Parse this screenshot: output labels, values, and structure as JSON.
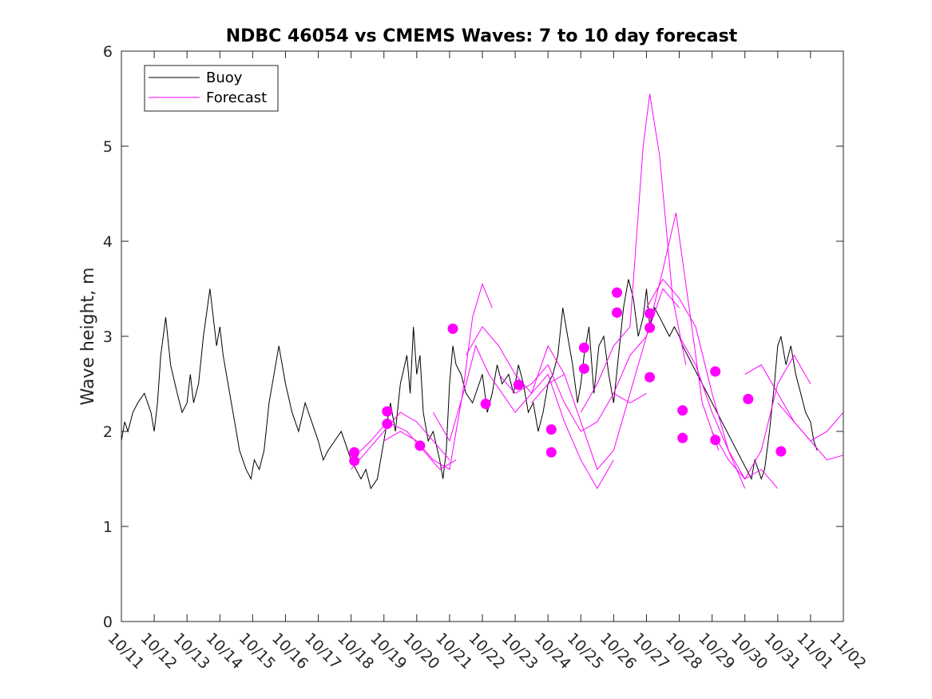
{
  "chart_data": {
    "type": "line",
    "title": "NDBC 46054 vs CMEMS Waves: 7 to 10 day forecast",
    "xlabel": "",
    "ylabel": "Wave height, m",
    "xlim": [
      0,
      22
    ],
    "ylim": [
      0,
      6
    ],
    "yticks": [
      0,
      1,
      2,
      3,
      4,
      5,
      6
    ],
    "categories": [
      "10/11",
      "10/12",
      "10/13",
      "10/14",
      "10/15",
      "10/16",
      "10/17",
      "10/18",
      "10/19",
      "10/20",
      "10/21",
      "10/22",
      "10/23",
      "10/24",
      "10/25",
      "10/26",
      "10/27",
      "10/28",
      "10/29",
      "10/30",
      "10/31",
      "11/01",
      "11/02"
    ],
    "legend": {
      "position": "top-left",
      "entries": [
        "Buoy",
        "Forecast"
      ]
    },
    "colors": {
      "buoy": "#000000",
      "forecast": "#ff00ff"
    },
    "series": [
      {
        "name": "Buoy",
        "x": [
          0,
          0.1,
          0.2,
          0.35,
          0.5,
          0.7,
          0.9,
          1.0,
          1.1,
          1.2,
          1.35,
          1.5,
          1.7,
          1.85,
          2.0,
          2.1,
          2.2,
          2.35,
          2.5,
          2.7,
          2.9,
          3.0,
          3.1,
          3.2,
          3.3,
          3.45,
          3.6,
          3.8,
          3.95,
          4.05,
          4.2,
          4.35,
          4.5,
          4.65,
          4.8,
          5.0,
          5.2,
          5.4,
          5.6,
          5.8,
          6.0,
          6.15,
          6.3,
          6.5,
          6.7,
          6.9,
          7.0,
          7.15,
          7.3,
          7.45,
          7.6,
          7.8,
          8.0,
          8.1,
          8.2,
          8.35,
          8.5,
          8.7,
          8.8,
          8.9,
          9.0,
          9.1,
          9.2,
          9.35,
          9.5,
          9.7,
          9.8,
          9.9,
          10.0,
          10.1,
          10.2,
          10.35,
          10.5,
          10.7,
          10.9,
          11.0,
          11.15,
          11.3,
          11.45,
          11.6,
          11.8,
          11.95,
          12.1,
          12.25,
          12.4,
          12.55,
          12.7,
          12.85,
          13.0,
          13.15,
          13.3,
          13.45,
          13.6,
          13.75,
          13.9,
          14.0,
          14.1,
          14.25,
          14.4,
          14.55,
          14.7,
          14.85,
          15.0,
          15.15,
          15.3,
          15.45,
          15.6,
          15.75,
          15.9,
          16.0,
          16.1,
          16.25,
          16.4,
          16.55,
          16.7,
          16.85,
          17.0,
          17.1,
          19.2,
          19.3,
          19.4,
          19.5,
          19.6,
          19.75,
          19.9,
          20.0,
          20.1,
          20.25,
          20.4,
          20.55,
          20.7,
          20.85,
          21.0,
          21.1,
          21.2
        ],
        "values": [
          1.9,
          2.1,
          2.0,
          2.2,
          2.3,
          2.4,
          2.2,
          2.0,
          2.3,
          2.8,
          3.2,
          2.7,
          2.4,
          2.2,
          2.3,
          2.6,
          2.3,
          2.5,
          3.0,
          3.5,
          2.9,
          3.1,
          2.8,
          2.6,
          2.4,
          2.1,
          1.8,
          1.6,
          1.5,
          1.7,
          1.6,
          1.8,
          2.3,
          2.6,
          2.9,
          2.5,
          2.2,
          2.0,
          2.3,
          2.1,
          1.9,
          1.7,
          1.8,
          1.9,
          2.0,
          1.8,
          1.7,
          1.6,
          1.5,
          1.6,
          1.4,
          1.5,
          1.9,
          2.1,
          2.3,
          2.0,
          2.5,
          2.8,
          2.4,
          3.1,
          2.6,
          2.8,
          2.2,
          1.9,
          2.0,
          1.7,
          1.5,
          1.8,
          2.5,
          2.9,
          2.7,
          2.6,
          2.4,
          2.3,
          2.5,
          2.6,
          2.2,
          2.4,
          2.7,
          2.5,
          2.6,
          2.4,
          2.7,
          2.5,
          2.2,
          2.3,
          2.0,
          2.2,
          2.5,
          2.6,
          2.8,
          3.3,
          3.0,
          2.7,
          2.3,
          2.5,
          2.8,
          3.1,
          2.4,
          2.9,
          3.0,
          2.6,
          2.3,
          2.8,
          3.3,
          3.6,
          3.4,
          3.0,
          3.2,
          3.5,
          3.1,
          3.3,
          3.2,
          3.1,
          3.0,
          3.1,
          3.0,
          2.9,
          1.5,
          1.7,
          1.6,
          1.5,
          1.6,
          2.0,
          2.5,
          2.9,
          3.0,
          2.7,
          2.9,
          2.6,
          2.4,
          2.2,
          2.1,
          1.9,
          1.8
        ]
      },
      {
        "name": "Forecast",
        "runs": [
          {
            "x": [
              7.0,
              7.5,
              8.0,
              8.5,
              9.0,
              9.5,
              10.0
            ],
            "values": [
              1.6,
              1.8,
              2.0,
              2.2,
              2.1,
              1.9,
              1.7
            ]
          },
          {
            "x": [
              7.0,
              7.6,
              8.1,
              8.7,
              9.2,
              9.7,
              10.2
            ],
            "values": [
              1.7,
              1.9,
              2.1,
              2.0,
              1.8,
              1.6,
              1.7
            ]
          },
          {
            "x": [
              8.0,
              8.5,
              9.0,
              9.5,
              10.0,
              10.4,
              10.7,
              11.0,
              11.3
            ],
            "values": [
              1.9,
              2.0,
              1.9,
              1.7,
              1.6,
              2.4,
              3.2,
              3.55,
              3.3
            ]
          },
          {
            "x": [
              9.5,
              10.0,
              10.5,
              10.8,
              11.2,
              11.6,
              12.0,
              12.5,
              13.0,
              13.5
            ],
            "values": [
              2.2,
              1.9,
              2.5,
              2.9,
              2.6,
              2.4,
              2.2,
              2.4,
              2.9,
              2.6
            ]
          },
          {
            "x": [
              10.5,
              11.0,
              11.5,
              12.0,
              12.5,
              13.0,
              13.5,
              14.0,
              14.5,
              15.0
            ],
            "values": [
              2.8,
              3.1,
              2.9,
              2.6,
              2.4,
              2.6,
              2.1,
              1.7,
              1.4,
              1.7
            ]
          },
          {
            "x": [
              11.5,
              12.0,
              12.5,
              13.0,
              13.5,
              14.0,
              14.5,
              15.0,
              15.5,
              16.0
            ],
            "values": [
              2.6,
              2.4,
              2.5,
              2.7,
              2.3,
              2.0,
              2.1,
              2.4,
              2.3,
              2.4
            ]
          },
          {
            "x": [
              12.5,
              13.0,
              13.5,
              14.0,
              14.5,
              15.0,
              15.5,
              16.0,
              16.5,
              17.0
            ],
            "values": [
              2.3,
              2.5,
              2.6,
              2.1,
              1.6,
              1.8,
              2.4,
              3.0,
              3.5,
              3.3
            ]
          },
          {
            "x": [
              14.0,
              14.5,
              15.0,
              15.5,
              15.9,
              16.1,
              16.4,
              16.8,
              17.2
            ],
            "values": [
              2.2,
              2.5,
              2.9,
              3.1,
              5.0,
              5.55,
              4.9,
              3.4,
              2.7
            ]
          },
          {
            "x": [
              15.0,
              15.5,
              16.0,
              16.5,
              16.9,
              17.3,
              17.7,
              18.2
            ],
            "values": [
              2.4,
              2.8,
              3.0,
              3.7,
              4.3,
              3.3,
              2.3,
              1.8
            ]
          },
          {
            "x": [
              16.0,
              16.5,
              17.0,
              17.5,
              18.0,
              18.5,
              19.0
            ],
            "values": [
              3.3,
              3.6,
              3.4,
              3.1,
              2.4,
              1.8,
              1.4
            ]
          },
          {
            "x": [
              17.0,
              17.5,
              18.0,
              18.5,
              19.0,
              19.5,
              20.0
            ],
            "values": [
              3.0,
              2.7,
              2.2,
              1.8,
              1.5,
              1.6,
              1.4
            ]
          },
          {
            "x": [
              18.0,
              18.5,
              19.0,
              19.5,
              20.0,
              20.5,
              21.0
            ],
            "values": [
              2.0,
              1.7,
              1.5,
              1.8,
              2.5,
              2.8,
              2.5
            ]
          },
          {
            "x": [
              19.0,
              19.5,
              20.0,
              20.5,
              21.0,
              21.5,
              22.0
            ],
            "values": [
              2.6,
              2.7,
              2.4,
              2.1,
              1.9,
              1.7,
              1.75
            ]
          },
          {
            "x": [
              20.0,
              20.5,
              21.0,
              21.5,
              22.0
            ],
            "values": [
              2.3,
              2.1,
              1.9,
              2.0,
              2.2
            ]
          }
        ]
      }
    ],
    "markers": {
      "name": "Forecast start points",
      "x": [
        7.1,
        7.1,
        8.1,
        8.1,
        9.1,
        10.1,
        11.1,
        12.1,
        13.1,
        13.1,
        14.1,
        14.1,
        15.1,
        15.1,
        16.1,
        16.1,
        16.1,
        17.1,
        17.1,
        18.1,
        18.1,
        19.1,
        20.1
      ],
      "values": [
        1.78,
        1.69,
        2.21,
        2.08,
        1.85,
        3.08,
        2.29,
        2.49,
        2.02,
        1.78,
        2.88,
        2.66,
        3.46,
        3.25,
        3.24,
        2.57,
        3.09,
        2.22,
        1.93,
        1.91,
        2.63,
        2.34,
        1.79
      ]
    }
  }
}
